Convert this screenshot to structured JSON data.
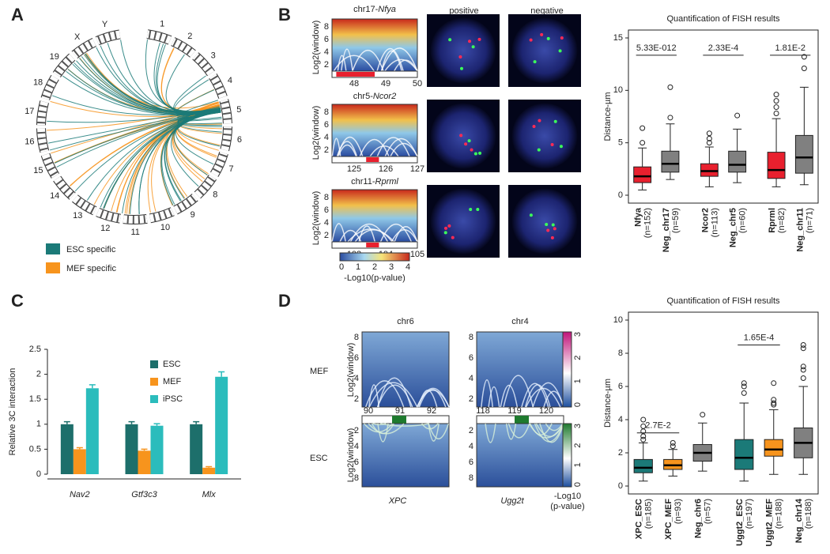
{
  "panel_labels": [
    "A",
    "B",
    "C",
    "D"
  ],
  "panel_a": {
    "chromosomes": [
      "1",
      "2",
      "3",
      "4",
      "5",
      "6",
      "7",
      "8",
      "9",
      "10",
      "11",
      "12",
      "13",
      "14",
      "15",
      "16",
      "17",
      "18",
      "19",
      "X",
      "Y"
    ],
    "legend": [
      {
        "name": "ESC specific",
        "color": "#1b7a78"
      },
      {
        "name": "MEF specific",
        "color": "#f7941d"
      }
    ]
  },
  "panel_b": {
    "columns": [
      "positive",
      "negative"
    ],
    "heatmaps": [
      {
        "prefix": "chr17-",
        "gene": "Nfya",
        "xticks": [
          48,
          49,
          50
        ]
      },
      {
        "prefix": "chr5-",
        "gene": "Ncor2",
        "xticks": [
          125,
          126,
          127
        ]
      },
      {
        "prefix": "chr11-",
        "gene": "Rprml",
        "xticks": [
          103,
          104,
          105
        ]
      }
    ],
    "ylabel": "Log2(window)",
    "yticks": [
      2,
      4,
      6,
      8
    ],
    "colorbar_ticks": [
      0,
      1,
      2,
      3,
      4
    ],
    "colorbar_label": "-Log10(p-value)"
  },
  "panel_d": {
    "columns": [
      "chr6",
      "chr4"
    ],
    "rows": [
      "MEF",
      "ESC"
    ],
    "ylabel": "Log2(window)",
    "yticks": [
      2,
      4,
      6,
      8
    ],
    "xticks": [
      [
        90,
        91,
        92
      ],
      [
        118,
        119,
        120
      ]
    ],
    "genes": [
      "XPC",
      "Ugg2t"
    ],
    "colorbar_ticks": [
      0,
      1,
      2,
      3
    ],
    "colorbar_label": [
      "-Log10",
      "(p-value)"
    ]
  },
  "chart_data": [
    {
      "type": "bar",
      "ylabel": "Relative 3C interaction",
      "categories": [
        "Nav2",
        "Gtf3c3",
        "Mlx"
      ],
      "ylim": [
        0,
        2.5
      ],
      "yticks": [
        0,
        0.5,
        1,
        1.5,
        2,
        2.5
      ],
      "series": [
        {
          "name": "ESC",
          "color": "#1d6f6b",
          "values": [
            1,
            1,
            1
          ],
          "errors": [
            0.05,
            0.05,
            0.05
          ]
        },
        {
          "name": "MEF",
          "color": "#f7941d",
          "values": [
            0.5,
            0.47,
            0.13
          ],
          "errors": [
            0.03,
            0.03,
            0.02
          ]
        },
        {
          "name": "iPSC",
          "color": "#2bbcbc",
          "values": [
            1.72,
            0.97,
            1.95
          ],
          "errors": [
            0.07,
            0.04,
            0.1
          ]
        }
      ]
    },
    {
      "type": "box",
      "title": "Quantification of FISH results",
      "ylabel": "Distance-µm",
      "ylim": [
        0,
        15
      ],
      "yticks": [
        0,
        5,
        10,
        15
      ],
      "categories": [
        "Nfya",
        "Neg_chr17",
        "Ncor2",
        "Neg_chr5",
        "Rprml",
        "Neg_chr11"
      ],
      "n_labels": [
        "(n=152)",
        "(n=59)",
        "(n=113)",
        "(n=60)",
        "(n=82)",
        "(n=71)"
      ],
      "pvalues": [
        "5.33E-012",
        "2.33E-4",
        "1.81E-2"
      ],
      "boxes": [
        {
          "color": "#e8202e",
          "min": 0.5,
          "q1": 1.2,
          "median": 1.8,
          "q3": 2.7,
          "max": 4.5,
          "outliers": [
            5,
            6.4
          ]
        },
        {
          "color": "#808080",
          "min": 1.5,
          "q1": 2.2,
          "median": 3.0,
          "q3": 4.2,
          "max": 6.8,
          "outliers": [
            7.4,
            10.3
          ]
        },
        {
          "color": "#e8202e",
          "min": 0.8,
          "q1": 1.8,
          "median": 2.3,
          "q3": 3.0,
          "max": 4.6,
          "outliers": [
            5,
            5.4,
            5.9
          ]
        },
        {
          "color": "#808080",
          "min": 1.2,
          "q1": 2.2,
          "median": 2.9,
          "q3": 4.2,
          "max": 6.3,
          "outliers": [
            7.6
          ]
        },
        {
          "color": "#e8202e",
          "min": 0.8,
          "q1": 1.6,
          "median": 2.4,
          "q3": 4.1,
          "max": 7.3,
          "outliers": [
            7.8,
            8.4,
            9.0,
            9.6
          ]
        },
        {
          "color": "#808080",
          "min": 1.0,
          "q1": 2.1,
          "median": 3.6,
          "q3": 5.7,
          "max": 10.3,
          "outliers": [
            12.1,
            13.2
          ]
        }
      ]
    },
    {
      "type": "box",
      "title": "Quantification of FISH results",
      "ylabel": "Distance-µm",
      "ylim": [
        0,
        10
      ],
      "yticks": [
        0,
        2,
        4,
        6,
        8,
        10
      ],
      "categories": [
        "XPC_ESC",
        "XPC_MEF",
        "Neg_chr6",
        "Uggt2_ESC",
        "Uggt2_MEF",
        "Neg_chr14"
      ],
      "n_labels": [
        "(n=185)",
        "(n=93)",
        "(n=57)",
        "(n=197)",
        "(n=188)",
        "(n=188)"
      ],
      "pvalues": [
        "2.7E-2",
        "1.65E-4"
      ],
      "boxes": [
        {
          "color": "#1b7a78",
          "min": 0.3,
          "q1": 0.8,
          "median": 1.1,
          "q3": 1.6,
          "max": 2.6,
          "outliers": [
            2.8,
            3.0,
            3.3,
            3.6,
            4.0
          ]
        },
        {
          "color": "#f7941d",
          "min": 0.6,
          "q1": 1.0,
          "median": 1.25,
          "q3": 1.6,
          "max": 2.2,
          "outliers": [
            2.4,
            2.6
          ]
        },
        {
          "color": "#808080",
          "min": 0.9,
          "q1": 1.5,
          "median": 2.0,
          "q3": 2.5,
          "max": 3.8,
          "outliers": [
            4.3
          ]
        },
        {
          "color": "#1b7a78",
          "min": 0.3,
          "q1": 1.0,
          "median": 1.7,
          "q3": 2.8,
          "max": 5.0,
          "outliers": [
            5.6,
            6.0,
            6.2
          ]
        },
        {
          "color": "#f7941d",
          "min": 0.7,
          "q1": 1.8,
          "median": 2.2,
          "q3": 2.8,
          "max": 4.6,
          "outliers": [
            4.9,
            5.0,
            5.2,
            6.2
          ]
        },
        {
          "color": "#808080",
          "min": 0.7,
          "q1": 1.7,
          "median": 2.6,
          "q3": 3.5,
          "max": 6.0,
          "outliers": [
            6.5,
            7.0,
            7.2,
            8.3,
            8.5
          ]
        }
      ]
    }
  ]
}
